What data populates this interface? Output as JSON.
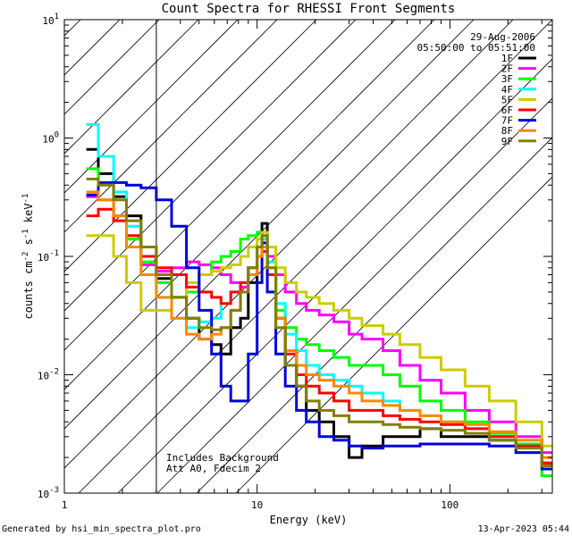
{
  "chart_data": {
    "type": "line",
    "title": "Count Spectra for RHESSI Front Segments",
    "xlabel": "Energy (keV)",
    "ylabel_parts": [
      "counts cm",
      "-2",
      " s",
      "-1",
      " keV",
      "-1"
    ],
    "x_scale": "log",
    "y_scale": "log",
    "xlim": [
      1,
      340
    ],
    "ylim": [
      0.001,
      10
    ],
    "x_ticks": [
      {
        "value": 1,
        "label": "1"
      },
      {
        "value": 10,
        "label": "10"
      },
      {
        "value": 100,
        "label": "100"
      }
    ],
    "y_ticks": [
      {
        "value": 0.001,
        "base": "10",
        "exp": "-3"
      },
      {
        "value": 0.01,
        "base": "10",
        "exp": "-2"
      },
      {
        "value": 0.1,
        "base": "10",
        "exp": "-1"
      },
      {
        "value": 1,
        "base": "10",
        "exp": "0"
      },
      {
        "value": 10,
        "base": "10",
        "exp": "1"
      }
    ],
    "hatched_region_max_energy": 3,
    "date": "29-Aug-2006",
    "time_range": "05:50:00 to 05:51:00",
    "annotations": [
      "Includes Background",
      "Att A0, Fdecim 2"
    ],
    "legend_position": "top-right",
    "series": [
      {
        "name": "1F",
        "color": "#000000",
        "points": [
          [
            1.3,
            0.8
          ],
          [
            1.5,
            0.5
          ],
          [
            1.8,
            0.32
          ],
          [
            2.1,
            0.22
          ],
          [
            2.5,
            0.12
          ],
          [
            3.0,
            0.065
          ],
          [
            3.6,
            0.045
          ],
          [
            4.3,
            0.03
          ],
          [
            5.0,
            0.02
          ],
          [
            5.8,
            0.018
          ],
          [
            6.5,
            0.015
          ],
          [
            7.3,
            0.025
          ],
          [
            8.2,
            0.03
          ],
          [
            9.0,
            0.06
          ],
          [
            10.0,
            0.12
          ],
          [
            10.6,
            0.19
          ],
          [
            11.3,
            0.09
          ],
          [
            12.5,
            0.03
          ],
          [
            14,
            0.012
          ],
          [
            16,
            0.008
          ],
          [
            18,
            0.005
          ],
          [
            21,
            0.004
          ],
          [
            25,
            0.003
          ],
          [
            30,
            0.002
          ],
          [
            35,
            0.0025
          ],
          [
            45,
            0.003
          ],
          [
            55,
            0.003
          ],
          [
            70,
            0.0035
          ],
          [
            90,
            0.003
          ],
          [
            120,
            0.003
          ],
          [
            160,
            0.0028
          ],
          [
            220,
            0.0025
          ],
          [
            300,
            0.0018
          ]
        ]
      },
      {
        "name": "2F",
        "color": "#ff00ff",
        "points": [
          [
            1.3,
            0.32
          ],
          [
            1.5,
            0.3
          ],
          [
            1.8,
            0.22
          ],
          [
            2.1,
            0.14
          ],
          [
            2.5,
            0.085
          ],
          [
            3.0,
            0.075
          ],
          [
            3.6,
            0.08
          ],
          [
            4.3,
            0.09
          ],
          [
            5.0,
            0.085
          ],
          [
            5.8,
            0.08
          ],
          [
            6.5,
            0.07
          ],
          [
            7.3,
            0.06
          ],
          [
            8.2,
            0.055
          ],
          [
            9.0,
            0.07
          ],
          [
            10.0,
            0.1
          ],
          [
            10.6,
            0.13
          ],
          [
            11.3,
            0.1
          ],
          [
            12.5,
            0.07
          ],
          [
            14,
            0.05
          ],
          [
            16,
            0.04
          ],
          [
            18,
            0.035
          ],
          [
            21,
            0.032
          ],
          [
            25,
            0.028
          ],
          [
            30,
            0.022
          ],
          [
            35,
            0.02
          ],
          [
            45,
            0.016
          ],
          [
            55,
            0.012
          ],
          [
            70,
            0.009
          ],
          [
            90,
            0.007
          ],
          [
            120,
            0.005
          ],
          [
            160,
            0.004
          ],
          [
            220,
            0.003
          ],
          [
            300,
            0.0022
          ]
        ]
      },
      {
        "name": "3F",
        "color": "#00ff00",
        "points": [
          [
            1.3,
            0.55
          ],
          [
            1.5,
            0.3
          ],
          [
            1.8,
            0.2
          ],
          [
            2.1,
            0.14
          ],
          [
            2.5,
            0.09
          ],
          [
            3.0,
            0.06
          ],
          [
            3.6,
            0.045
          ],
          [
            4.3,
            0.05
          ],
          [
            5.0,
            0.07
          ],
          [
            5.8,
            0.09
          ],
          [
            6.5,
            0.1
          ],
          [
            7.3,
            0.11
          ],
          [
            8.2,
            0.14
          ],
          [
            9.0,
            0.15
          ],
          [
            10.0,
            0.16
          ],
          [
            10.6,
            0.15
          ],
          [
            11.3,
            0.08
          ],
          [
            12.5,
            0.035
          ],
          [
            14,
            0.025
          ],
          [
            16,
            0.02
          ],
          [
            18,
            0.018
          ],
          [
            21,
            0.016
          ],
          [
            25,
            0.014
          ],
          [
            30,
            0.012
          ],
          [
            35,
            0.012
          ],
          [
            45,
            0.01
          ],
          [
            55,
            0.008
          ],
          [
            70,
            0.006
          ],
          [
            90,
            0.005
          ],
          [
            120,
            0.004
          ],
          [
            160,
            0.0032
          ],
          [
            220,
            0.0026
          ],
          [
            300,
            0.0014
          ]
        ]
      },
      {
        "name": "4F",
        "color": "#00ffff",
        "points": [
          [
            1.3,
            1.3
          ],
          [
            1.5,
            0.7
          ],
          [
            1.8,
            0.35
          ],
          [
            2.1,
            0.18
          ],
          [
            2.5,
            0.1
          ],
          [
            3.0,
            0.045
          ],
          [
            3.6,
            0.03
          ],
          [
            4.3,
            0.025
          ],
          [
            5.0,
            0.028
          ],
          [
            5.8,
            0.03
          ],
          [
            6.5,
            0.04
          ],
          [
            7.3,
            0.05
          ],
          [
            8.2,
            0.06
          ],
          [
            9.0,
            0.08
          ],
          [
            10.0,
            0.12
          ],
          [
            10.6,
            0.14
          ],
          [
            11.3,
            0.09
          ],
          [
            12.5,
            0.04
          ],
          [
            14,
            0.022
          ],
          [
            16,
            0.016
          ],
          [
            18,
            0.012
          ],
          [
            21,
            0.01
          ],
          [
            25,
            0.009
          ],
          [
            30,
            0.008
          ],
          [
            35,
            0.007
          ],
          [
            45,
            0.006
          ],
          [
            55,
            0.005
          ],
          [
            70,
            0.0045
          ],
          [
            90,
            0.004
          ],
          [
            120,
            0.0035
          ],
          [
            160,
            0.003
          ],
          [
            220,
            0.0025
          ],
          [
            300,
            0.002
          ]
        ]
      },
      {
        "name": "5F",
        "color": "#cccc00",
        "points": [
          [
            1.3,
            0.15
          ],
          [
            1.5,
            0.15
          ],
          [
            1.8,
            0.1
          ],
          [
            2.1,
            0.06
          ],
          [
            2.5,
            0.035
          ],
          [
            3.0,
            0.035
          ],
          [
            3.6,
            0.045
          ],
          [
            4.3,
            0.06
          ],
          [
            5.0,
            0.07
          ],
          [
            5.8,
            0.075
          ],
          [
            6.5,
            0.08
          ],
          [
            7.3,
            0.085
          ],
          [
            8.2,
            0.1
          ],
          [
            9.0,
            0.12
          ],
          [
            10.0,
            0.14
          ],
          [
            10.6,
            0.16
          ],
          [
            11.3,
            0.12
          ],
          [
            12.5,
            0.08
          ],
          [
            14,
            0.06
          ],
          [
            16,
            0.05
          ],
          [
            18,
            0.045
          ],
          [
            21,
            0.04
          ],
          [
            25,
            0.035
          ],
          [
            30,
            0.03
          ],
          [
            35,
            0.026
          ],
          [
            45,
            0.022
          ],
          [
            55,
            0.018
          ],
          [
            70,
            0.014
          ],
          [
            90,
            0.011
          ],
          [
            120,
            0.008
          ],
          [
            160,
            0.006
          ],
          [
            220,
            0.004
          ],
          [
            300,
            0.0025
          ]
        ]
      },
      {
        "name": "6F",
        "color": "#ff0000",
        "points": [
          [
            1.3,
            0.22
          ],
          [
            1.5,
            0.25
          ],
          [
            1.8,
            0.2
          ],
          [
            2.1,
            0.15
          ],
          [
            2.5,
            0.1
          ],
          [
            3.0,
            0.08
          ],
          [
            3.6,
            0.07
          ],
          [
            4.3,
            0.055
          ],
          [
            5.0,
            0.05
          ],
          [
            5.8,
            0.045
          ],
          [
            6.5,
            0.04
          ],
          [
            7.3,
            0.05
          ],
          [
            8.2,
            0.06
          ],
          [
            9.0,
            0.08
          ],
          [
            10.0,
            0.1
          ],
          [
            10.6,
            0.11
          ],
          [
            11.3,
            0.07
          ],
          [
            12.5,
            0.03
          ],
          [
            14,
            0.015
          ],
          [
            16,
            0.01
          ],
          [
            18,
            0.008
          ],
          [
            21,
            0.007
          ],
          [
            25,
            0.006
          ],
          [
            30,
            0.005
          ],
          [
            35,
            0.005
          ],
          [
            45,
            0.0045
          ],
          [
            55,
            0.0042
          ],
          [
            70,
            0.004
          ],
          [
            90,
            0.0038
          ],
          [
            120,
            0.0035
          ],
          [
            160,
            0.003
          ],
          [
            220,
            0.0025
          ],
          [
            300,
            0.0018
          ]
        ]
      },
      {
        "name": "7F",
        "color": "#0000dd",
        "points": [
          [
            1.3,
            0.33
          ],
          [
            1.5,
            0.42
          ],
          [
            1.8,
            0.42
          ],
          [
            2.1,
            0.4
          ],
          [
            2.5,
            0.38
          ],
          [
            3.0,
            0.3
          ],
          [
            3.6,
            0.18
          ],
          [
            4.3,
            0.08
          ],
          [
            5.0,
            0.035
          ],
          [
            5.8,
            0.015
          ],
          [
            6.5,
            0.008
          ],
          [
            7.3,
            0.006
          ],
          [
            8.2,
            0.006
          ],
          [
            9.0,
            0.015
          ],
          [
            10.0,
            0.06
          ],
          [
            10.6,
            0.13
          ],
          [
            11.3,
            0.05
          ],
          [
            12.5,
            0.015
          ],
          [
            14,
            0.008
          ],
          [
            16,
            0.005
          ],
          [
            18,
            0.004
          ],
          [
            21,
            0.003
          ],
          [
            25,
            0.0028
          ],
          [
            30,
            0.0025
          ],
          [
            35,
            0.0024
          ],
          [
            45,
            0.0025
          ],
          [
            55,
            0.0025
          ],
          [
            70,
            0.0026
          ],
          [
            90,
            0.0026
          ],
          [
            120,
            0.0026
          ],
          [
            160,
            0.0025
          ],
          [
            220,
            0.0022
          ],
          [
            300,
            0.0016
          ]
        ]
      },
      {
        "name": "8F",
        "color": "#ff8800",
        "points": [
          [
            1.3,
            0.35
          ],
          [
            1.5,
            0.3
          ],
          [
            1.8,
            0.22
          ],
          [
            2.1,
            0.12
          ],
          [
            2.5,
            0.07
          ],
          [
            3.0,
            0.045
          ],
          [
            3.6,
            0.03
          ],
          [
            4.3,
            0.022
          ],
          [
            5.0,
            0.02
          ],
          [
            5.8,
            0.022
          ],
          [
            6.5,
            0.025
          ],
          [
            7.3,
            0.035
          ],
          [
            8.2,
            0.05
          ],
          [
            9.0,
            0.07
          ],
          [
            10.0,
            0.1
          ],
          [
            10.6,
            0.12
          ],
          [
            11.3,
            0.08
          ],
          [
            12.5,
            0.03
          ],
          [
            14,
            0.016
          ],
          [
            16,
            0.012
          ],
          [
            18,
            0.01
          ],
          [
            21,
            0.009
          ],
          [
            25,
            0.008
          ],
          [
            30,
            0.007
          ],
          [
            35,
            0.006
          ],
          [
            45,
            0.0055
          ],
          [
            55,
            0.005
          ],
          [
            70,
            0.0045
          ],
          [
            90,
            0.004
          ],
          [
            120,
            0.0038
          ],
          [
            160,
            0.0033
          ],
          [
            220,
            0.0028
          ],
          [
            300,
            0.002
          ]
        ]
      },
      {
        "name": "9F",
        "color": "#808000",
        "points": [
          [
            1.3,
            0.45
          ],
          [
            1.5,
            0.4
          ],
          [
            1.8,
            0.3
          ],
          [
            2.1,
            0.2
          ],
          [
            2.5,
            0.12
          ],
          [
            3.0,
            0.07
          ],
          [
            3.6,
            0.045
          ],
          [
            4.3,
            0.03
          ],
          [
            5.0,
            0.025
          ],
          [
            5.8,
            0.024
          ],
          [
            6.5,
            0.025
          ],
          [
            7.3,
            0.035
          ],
          [
            8.2,
            0.05
          ],
          [
            9.0,
            0.08
          ],
          [
            10.0,
            0.12
          ],
          [
            10.6,
            0.15
          ],
          [
            11.3,
            0.08
          ],
          [
            12.5,
            0.025
          ],
          [
            14,
            0.012
          ],
          [
            16,
            0.008
          ],
          [
            18,
            0.006
          ],
          [
            21,
            0.005
          ],
          [
            25,
            0.0045
          ],
          [
            30,
            0.004
          ],
          [
            35,
            0.004
          ],
          [
            45,
            0.0038
          ],
          [
            55,
            0.0036
          ],
          [
            70,
            0.0035
          ],
          [
            90,
            0.0034
          ],
          [
            120,
            0.0032
          ],
          [
            160,
            0.0028
          ],
          [
            220,
            0.0024
          ],
          [
            300,
            0.0017
          ]
        ]
      }
    ]
  },
  "footer": {
    "generated_by": "Generated by hsi_min_spectra_plot.pro",
    "timestamp": "13-Apr-2023 05:44"
  }
}
